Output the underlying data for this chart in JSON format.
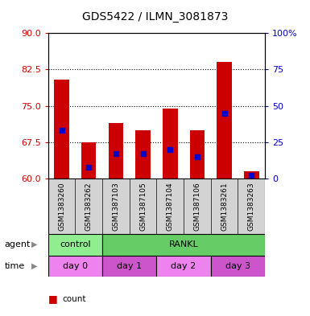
{
  "title": "GDS5422 / ILMN_3081873",
  "samples": [
    "GSM1383260",
    "GSM1383262",
    "GSM1387103",
    "GSM1387105",
    "GSM1387104",
    "GSM1387106",
    "GSM1383261",
    "GSM1383263"
  ],
  "count_values": [
    80.5,
    67.5,
    71.5,
    70.0,
    74.5,
    70.0,
    84.0,
    61.5
  ],
  "percentile_values": [
    33,
    8,
    17,
    17,
    20,
    15,
    45,
    2
  ],
  "ymin": 60,
  "ymax": 90,
  "y_ticks": [
    60,
    67.5,
    75,
    82.5,
    90
  ],
  "y2_ticks": [
    0,
    25,
    50,
    75,
    100
  ],
  "y2_labels": [
    "0",
    "25",
    "50",
    "75",
    "100%"
  ],
  "agent_labels": [
    {
      "text": "control",
      "start": 0,
      "end": 2,
      "color": "#90ee90"
    },
    {
      "text": "RANKL",
      "start": 2,
      "end": 8,
      "color": "#66cc66"
    }
  ],
  "time_labels": [
    {
      "text": "day 0",
      "start": 0,
      "end": 2,
      "color": "#ee82ee"
    },
    {
      "text": "day 1",
      "start": 2,
      "end": 4,
      "color": "#cc55cc"
    },
    {
      "text": "day 2",
      "start": 4,
      "end": 6,
      "color": "#ee82ee"
    },
    {
      "text": "day 3",
      "start": 6,
      "end": 8,
      "color": "#cc55cc"
    }
  ],
  "bar_color": "#cc0000",
  "dot_color": "#0000cc",
  "background_color": "#ffffff",
  "tick_color_left": "#cc0000",
  "tick_color_right": "#0000cc",
  "bar_width": 0.55
}
